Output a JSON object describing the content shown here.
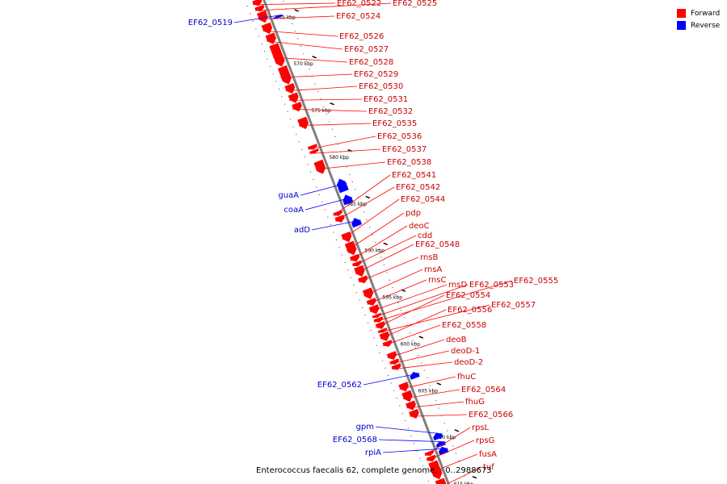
{
  "legend": {
    "forward_label": "Forward",
    "reverse_label": "Reverse",
    "forward_color": "#ff0000",
    "reverse_color": "#0000ff"
  },
  "caption": "Enterococcus faecalis 62, complete genome. - 0..2988673",
  "colors": {
    "backbone": "#808080",
    "forward_label": "#c80000",
    "reverse_label": "#0000c8",
    "tick": "#000000"
  },
  "ticks": [
    {
      "kbp": 565,
      "label": "565 kbp"
    },
    {
      "kbp": 570,
      "label": "570 kbp"
    },
    {
      "kbp": 575,
      "label": "575 kbp"
    },
    {
      "kbp": 580,
      "label": "580 kbp"
    },
    {
      "kbp": 585,
      "label": "585 kbp"
    },
    {
      "kbp": 590,
      "label": "590 kbp"
    },
    {
      "kbp": 595,
      "label": "595 kbp"
    },
    {
      "kbp": 600,
      "label": "600 kbp"
    },
    {
      "kbp": 605,
      "label": "605 kbp"
    },
    {
      "kbp": 610,
      "label": "610 kbp"
    },
    {
      "kbp": 615,
      "label": "615 kbp"
    }
  ],
  "forward_genes": [
    {
      "name": "EF62_0522",
      "start": 562.6,
      "end": 563.2
    },
    {
      "name": "EF62_0525",
      "start": 563.3,
      "end": 563.8
    },
    {
      "name": "EF62_0524",
      "start": 563.9,
      "end": 565.0
    },
    {
      "name": "EF62_0526",
      "start": 565.2,
      "end": 566.2
    },
    {
      "name": "EF62_0527",
      "start": 566.3,
      "end": 567.3
    },
    {
      "name": "EF62_0528",
      "start": 567.4,
      "end": 569.7
    },
    {
      "name": "EF62_0529",
      "start": 569.8,
      "end": 571.6
    },
    {
      "name": "EF62_0530",
      "start": 571.7,
      "end": 572.6
    },
    {
      "name": "EF62_0531",
      "start": 572.7,
      "end": 573.6
    },
    {
      "name": "EF62_0532",
      "start": 573.7,
      "end": 574.5
    },
    {
      "name": "EF62_0535",
      "start": 575.3,
      "end": 576.4
    },
    {
      "name": "EF62_0536",
      "start": 578.2,
      "end": 578.6
    },
    {
      "name": "EF62_0537",
      "start": 578.7,
      "end": 579.0
    },
    {
      "name": "EF62_0538",
      "start": 579.9,
      "end": 581.2
    },
    {
      "name": "EF62_0541",
      "start": 585.3,
      "end": 585.7
    },
    {
      "name": "EF62_0542",
      "start": 585.8,
      "end": 586.4
    },
    {
      "name": "EF62_0544",
      "start": 587.6,
      "end": 588.5
    },
    {
      "name": "pdp",
      "start": 588.6,
      "end": 589.9
    },
    {
      "name": "deoC",
      "start": 590.0,
      "end": 590.6
    },
    {
      "name": "cdd",
      "start": 590.7,
      "end": 591.1
    },
    {
      "name": "EF62_0548",
      "start": 591.2,
      "end": 592.2
    },
    {
      "name": "rnsB",
      "start": 592.3,
      "end": 592.9
    },
    {
      "name": "rnsA",
      "start": 593.6,
      "end": 594.6
    },
    {
      "name": "rnsC",
      "start": 594.7,
      "end": 595.3
    },
    {
      "name": "rnsD",
      "start": 595.4,
      "end": 596.2
    },
    {
      "name": "EF62_0553",
      "start": 596.3,
      "end": 596.6
    },
    {
      "name": "EF62_0555",
      "start": 596.7,
      "end": 597.1
    },
    {
      "name": "EF62_0554",
      "start": 597.2,
      "end": 597.8
    },
    {
      "name": "EF62_0557",
      "start": 597.9,
      "end": 598.2
    },
    {
      "name": "EF62_0556",
      "start": 598.3,
      "end": 599.1
    },
    {
      "name": "EF62_0558",
      "start": 599.2,
      "end": 599.7
    },
    {
      "name": "deoB",
      "start": 600.4,
      "end": 601.1
    },
    {
      "name": "deoD-1",
      "start": 601.2,
      "end": 601.6
    },
    {
      "name": "deoD-2",
      "start": 601.7,
      "end": 602.2
    },
    {
      "name": "fhuC",
      "start": 603.7,
      "end": 604.5
    },
    {
      "name": "EF62_0564",
      "start": 604.6,
      "end": 605.6
    },
    {
      "name": "fhuG",
      "start": 605.7,
      "end": 606.5
    },
    {
      "name": "EF62_0566",
      "start": 606.6,
      "end": 607.4
    },
    {
      "name": "rpsL",
      "start": 611.0,
      "end": 611.4
    },
    {
      "name": "rpsG",
      "start": 611.5,
      "end": 612.0
    },
    {
      "name": "fusA",
      "start": 612.1,
      "end": 613.9
    },
    {
      "name": "tuf",
      "start": 614.0,
      "end": 615.5
    }
  ],
  "reverse_genes": [
    {
      "name": "EF62_0519",
      "start": 564.8,
      "end": 565.0
    },
    {
      "name": "guaA",
      "start": 582.3,
      "end": 583.6
    },
    {
      "name": "coaA",
      "start": 584.0,
      "end": 584.9
    },
    {
      "name": "adD",
      "start": 586.5,
      "end": 587.3
    },
    {
      "name": "EF62_0562",
      "start": 603.0,
      "end": 603.6
    },
    {
      "name": "gpm",
      "start": 609.5,
      "end": 610.1
    },
    {
      "name": "EF62_0568",
      "start": 610.4,
      "end": 610.9
    },
    {
      "name": "rpiA",
      "start": 611.0,
      "end": 611.7
    }
  ],
  "forward_label_order": [
    "EF62_0522",
    "EF62_0525",
    "EF62_0524",
    "EF62_0526",
    "EF62_0527",
    "EF62_0528",
    "EF62_0529",
    "EF62_0530",
    "EF62_0531",
    "EF62_0532",
    "EF62_0535",
    "EF62_0536",
    "EF62_0537",
    "EF62_0538",
    "EF62_0541",
    "EF62_0542",
    "EF62_0544",
    "pdp",
    "deoC",
    "cdd",
    "EF62_0548",
    "rnsB",
    "rnsA",
    "rnsC",
    "rnsD",
    "EF62_0553",
    "EF62_0555",
    "EF62_0554",
    "EF62_0557",
    "EF62_0556",
    "EF62_0558",
    "deoB",
    "deoD-1",
    "deoD-2",
    "fhuC",
    "EF62_0564",
    "fhuG",
    "EF62_0566",
    "rpsL",
    "rpsG",
    "fusA",
    "tuf"
  ],
  "reverse_label_order": [
    "EF62_0519",
    "guaA",
    "coaA",
    "adD",
    "EF62_0562",
    "gpm",
    "EF62_0568",
    "rpiA"
  ]
}
